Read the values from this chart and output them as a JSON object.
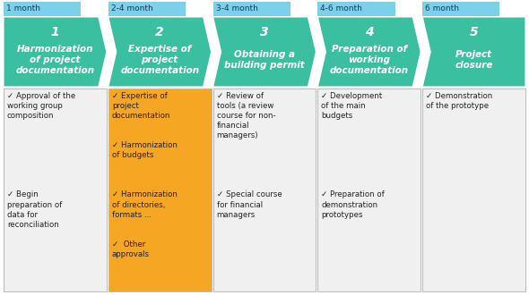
{
  "background_color": "#ffffff",
  "columns": [
    {
      "time_label": "1 month",
      "number": "1",
      "title": "Harmonization\nof project\ndocumentation",
      "arrow_color": "#3ABFA0",
      "time_box_color": "#7ECFE8",
      "box_color": "#f0f0f0",
      "border_color": "#bbbbbb",
      "items": [
        "✓ Approval of the\nworking group\ncomposition",
        "✓ Begin\npreparation of\ndata for\nreconciliation"
      ]
    },
    {
      "time_label": "2-4 month",
      "number": "2",
      "title": "Expertise of\nproject\ndocumentation",
      "arrow_color": "#3ABFA0",
      "time_box_color": "#7ECFE8",
      "box_color": "#F5A623",
      "border_color": "#bbbbbb",
      "items": [
        "✓ Expertise of\nproject\ndocumentation",
        "✓ Harmonization\nof budgets",
        "✓ Harmonization\nof directories,\nformats ...",
        "✓  Other\napprovals"
      ]
    },
    {
      "time_label": "3-4 month",
      "number": "3",
      "title": "Obtaining a\nbuilding permit",
      "arrow_color": "#3ABFA0",
      "time_box_color": "#7ECFE8",
      "box_color": "#f0f0f0",
      "border_color": "#bbbbbb",
      "items": [
        "✓ Review of\ntools (a review\ncourse for non-\nfinancial\nmanagers)",
        "✓ Special course\nfor financial\nmanagers"
      ]
    },
    {
      "time_label": "4-6 month",
      "number": "4",
      "title": "Preparation of\nworking\ndocumentation",
      "arrow_color": "#3ABFA0",
      "time_box_color": "#7ECFE8",
      "box_color": "#f0f0f0",
      "border_color": "#bbbbbb",
      "items": [
        "✓ Development\nof the main\nbudgets",
        "✓ Preparation of\ndemonstration\nprototypes"
      ]
    },
    {
      "time_label": "6 month",
      "number": "5",
      "title": "Project\nclosure",
      "arrow_color": "#3ABFA0",
      "time_box_color": "#7ECFE8",
      "box_color": "#f0f0f0",
      "border_color": "#bbbbbb",
      "items": [
        "✓ Demonstration\nof the prototype"
      ]
    }
  ],
  "number_color": "#ffffff",
  "title_color": "#ffffff",
  "time_text_color": "#1a3a5c",
  "item_color": "#222222",
  "item_fontsize": 6.2,
  "title_fontsize": 7.5,
  "number_fontsize": 10,
  "time_fontsize": 6.5
}
